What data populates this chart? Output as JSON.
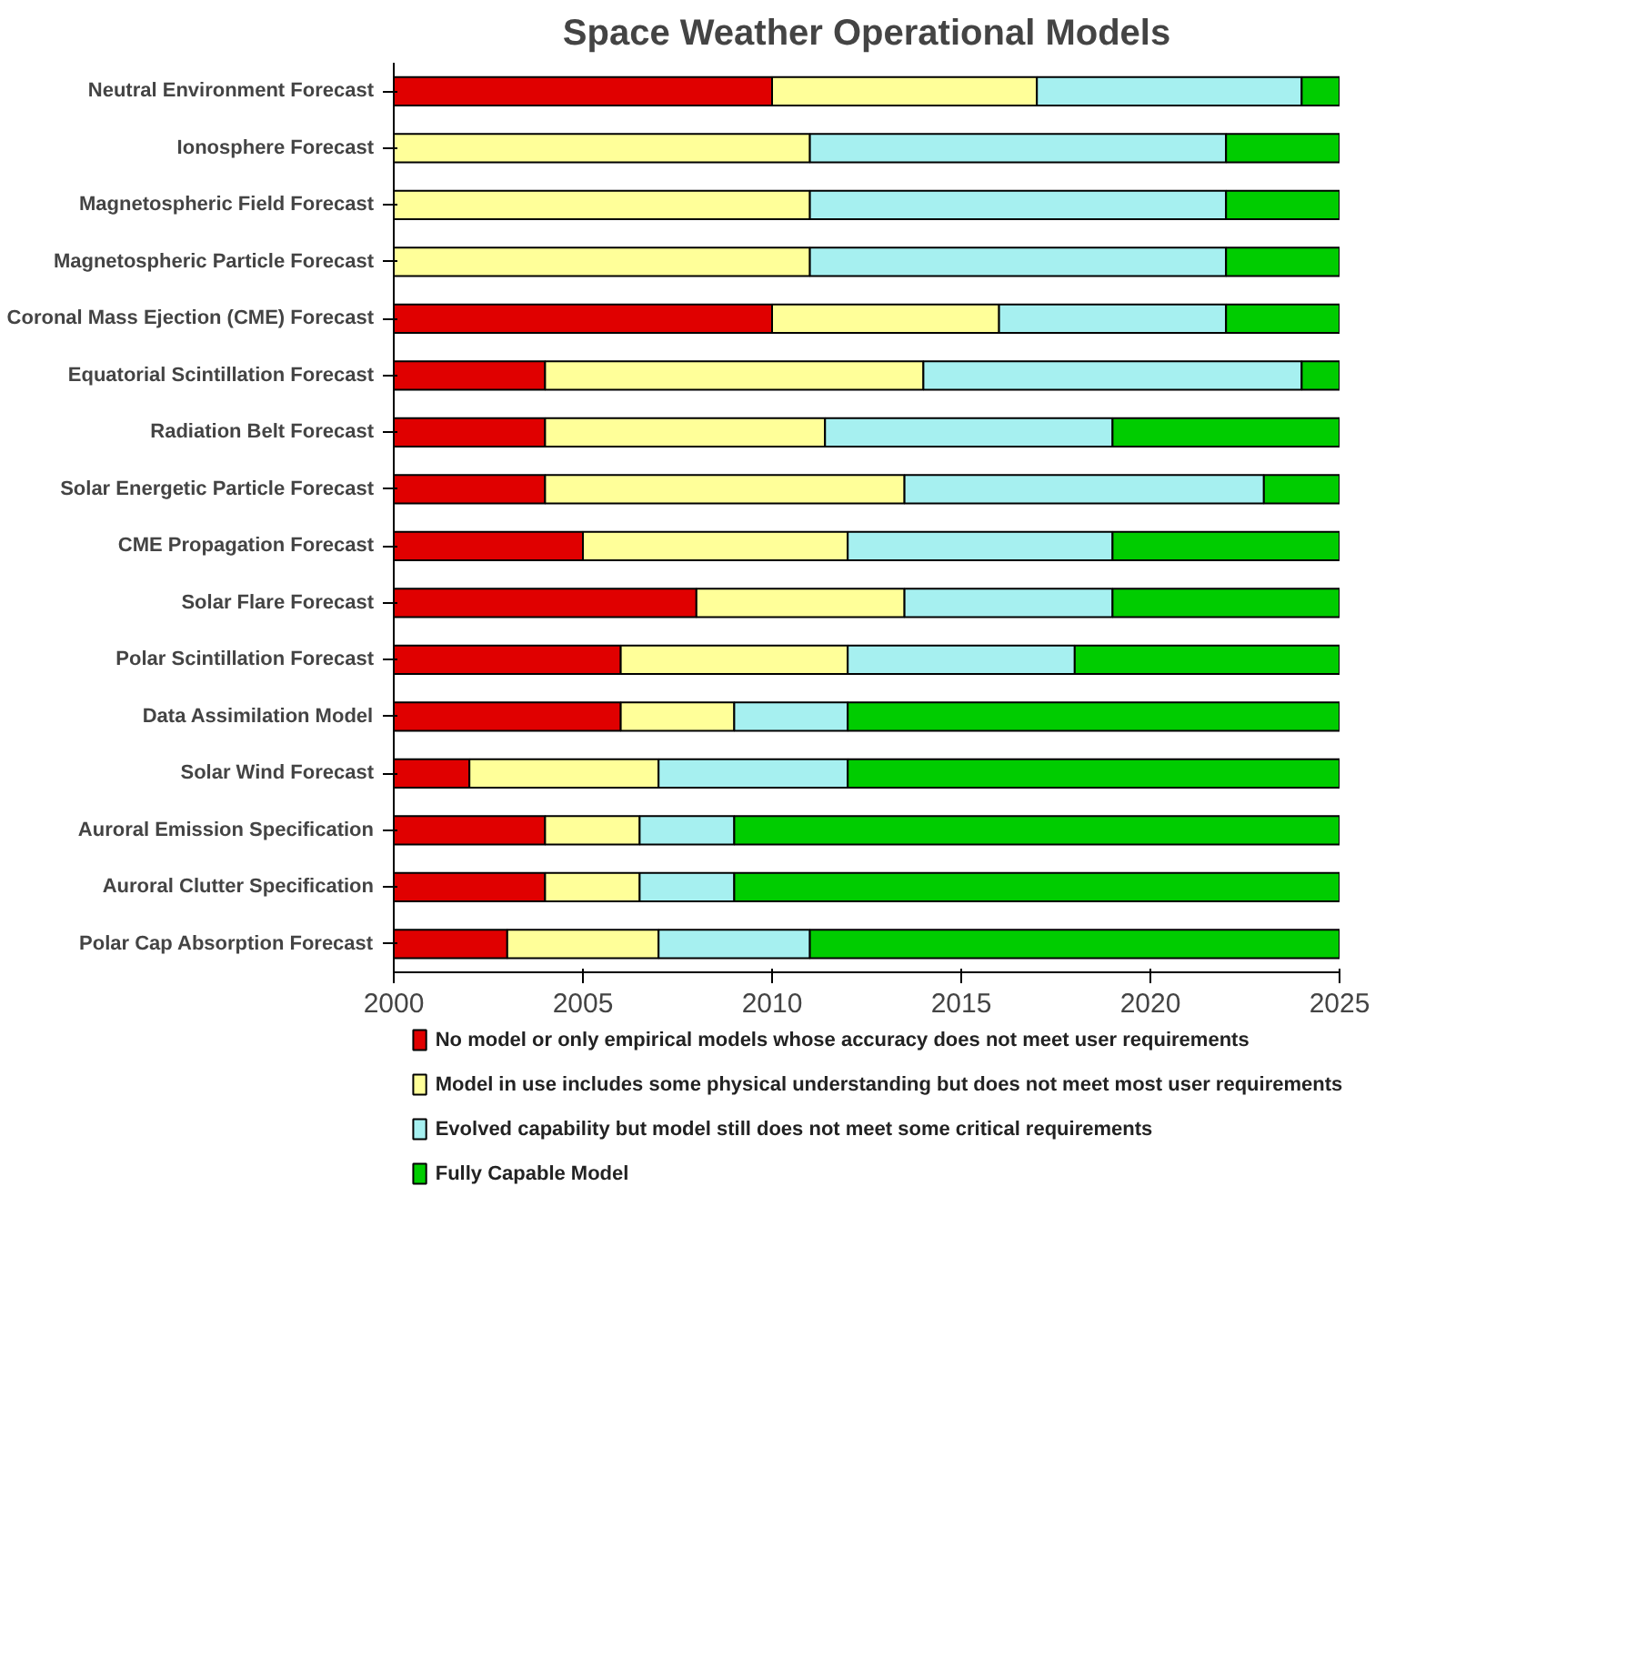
{
  "chart_data": {
    "type": "bar",
    "orientation": "horizontal",
    "title": "Space Weather Operational Models",
    "categories": [
      "Neutral Environment Forecast",
      "Ionosphere Forecast",
      "Magnetospheric Field Forecast",
      "Magnetospheric Particle Forecast",
      "Coronal Mass Ejection (CME) Forecast",
      "Equatorial Scintillation Forecast",
      "Radiation Belt Forecast",
      "Solar Energetic Particle Forecast",
      "CME Propagation Forecast",
      "Solar Flare Forecast",
      "Polar Scintillation Forecast",
      "Data Assimilation Model",
      "Solar Wind Forecast",
      "Auroral Emission Specification",
      "Auroral Clutter Specification",
      "Polar Cap Absorption Forecast"
    ],
    "series": [
      {
        "name": "No model or only empirical models whose accuracy does not meet user requirements",
        "color": "#e00000",
        "base": [
          2000,
          null,
          null,
          null,
          2000,
          2000,
          2000,
          2000,
          2000,
          2000,
          2000,
          2000,
          2000,
          2000,
          2000,
          2000
        ],
        "values": [
          10,
          null,
          null,
          null,
          10,
          4,
          4,
          4,
          5,
          8,
          6,
          6,
          2,
          4,
          4,
          3
        ]
      },
      {
        "name": "Model in use includes some physical understanding but does not meet most user requirements",
        "color": "#ffff99",
        "base": [
          2010,
          2000,
          2000,
          2000,
          2010,
          2004,
          2004,
          2004,
          2005,
          2008,
          2006,
          2006,
          2002,
          2004,
          2004,
          2003
        ],
        "values": [
          7,
          11,
          11,
          11,
          6,
          10,
          7.4,
          9.5,
          7,
          5.5,
          6,
          3,
          5,
          2.5,
          2.5,
          4
        ]
      },
      {
        "name": "Evolved capability but model still does not meet some critical requirements",
        "color": "#a6f0f0",
        "base": [
          2017,
          2011,
          2011,
          2011,
          2016,
          2014,
          2011.4,
          2013.5,
          2012,
          2013.5,
          2012,
          2009,
          2007,
          2006.5,
          2006.5,
          2007
        ],
        "values": [
          7,
          11,
          11,
          11,
          6,
          10,
          7.6,
          9.5,
          7,
          5.5,
          6,
          3,
          5,
          2.5,
          2.5,
          4
        ]
      },
      {
        "name": "Fully Capable Model",
        "color": "#00cc00",
        "base": [
          2024,
          2022,
          2022,
          2022,
          2022,
          2024,
          2019,
          2023,
          2019,
          2019,
          2018,
          2012,
          2012,
          2009,
          2009,
          2011
        ],
        "values": [
          1,
          3,
          3,
          3,
          3,
          1,
          6,
          2,
          6,
          6,
          7,
          13,
          13,
          16,
          16,
          14
        ]
      }
    ],
    "xlim": [
      2000,
      2025
    ],
    "xticks": [
      2000,
      2005,
      2010,
      2015,
      2020,
      2025
    ],
    "legend": "bottom"
  }
}
